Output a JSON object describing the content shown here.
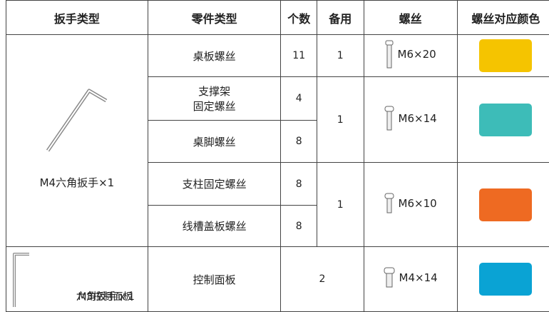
{
  "table": {
    "header": [
      "扳手类型",
      "零件类型",
      "个数",
      "备用",
      "螺丝",
      "螺丝对应颜色"
    ],
    "rows": [
      {
        "wrench": "M4六角扳手×1",
        "part": "桌板螺丝",
        "count": 11,
        "spare": 1,
        "screw": "M6×20"
      },
      {
        "part": [
          "支撑架",
          "固定螺丝"
        ],
        "count": 4,
        "spare": 1,
        "screw": "M6×14"
      },
      {
        "part": "桌脚螺丝",
        "count": 8
      },
      {
        "part": "支柱固定螺丝",
        "count": 8,
        "spare": 1,
        "screw": "M6×10"
      },
      {
        "part": "线槽盖板螺丝",
        "count": 8
      },
      {
        "wrench": [
          "M3控制面板",
          "六角扳手 x 1"
        ],
        "part": "控制面板",
        "count": 2,
        "screw": "M4×14"
      }
    ]
  }
}
